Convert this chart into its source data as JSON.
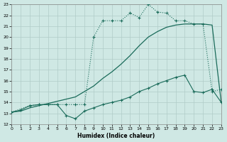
{
  "xlabel": "Humidex (Indice chaleur)",
  "background_color": "#cfe8e4",
  "grid_color": "#b0ccc8",
  "line_color": "#1a6b5a",
  "xlim": [
    0,
    23
  ],
  "ylim": [
    12,
    23
  ],
  "xticks": [
    0,
    1,
    2,
    3,
    4,
    5,
    6,
    7,
    8,
    9,
    10,
    11,
    12,
    13,
    14,
    15,
    16,
    17,
    18,
    19,
    20,
    21,
    22,
    23
  ],
  "yticks": [
    12,
    13,
    14,
    15,
    16,
    17,
    18,
    19,
    20,
    21,
    22,
    23
  ],
  "curve_smooth_x": [
    0,
    1,
    2,
    3,
    4,
    5,
    6,
    7,
    8,
    9,
    10,
    11,
    12,
    13,
    14,
    15,
    16,
    17,
    18,
    19,
    20,
    21,
    22,
    23
  ],
  "curve_smooth_y": [
    13.1,
    13.2,
    13.5,
    13.7,
    13.9,
    14.1,
    14.3,
    14.5,
    15.0,
    15.5,
    16.2,
    16.8,
    17.5,
    18.3,
    19.2,
    20.0,
    20.5,
    20.9,
    21.1,
    21.2,
    21.2,
    21.2,
    21.1,
    14.0
  ],
  "curve_dotted_x": [
    0,
    2,
    3,
    4,
    5,
    6,
    7,
    8,
    9,
    10,
    11,
    12,
    13,
    14,
    15,
    16,
    17,
    18,
    19,
    20,
    21,
    22,
    23
  ],
  "curve_dotted_y": [
    13.1,
    13.7,
    13.8,
    13.8,
    13.8,
    13.8,
    13.8,
    13.8,
    20.0,
    21.5,
    21.5,
    21.5,
    22.2,
    21.8,
    23.0,
    22.3,
    22.2,
    21.5,
    21.5,
    21.2,
    21.2,
    15.0,
    15.2
  ],
  "curve_bottom_x": [
    0,
    1,
    2,
    3,
    4,
    5,
    6,
    7,
    8,
    9,
    10,
    11,
    12,
    13,
    14,
    15,
    16,
    17,
    18,
    19,
    20,
    21,
    22,
    23
  ],
  "curve_bottom_y": [
    13.1,
    13.3,
    13.7,
    13.8,
    13.8,
    13.8,
    12.8,
    12.5,
    13.2,
    13.5,
    13.8,
    14.0,
    14.2,
    14.5,
    15.0,
    15.3,
    15.7,
    16.0,
    16.3,
    16.5,
    15.0,
    14.9,
    15.2,
    14.0
  ]
}
